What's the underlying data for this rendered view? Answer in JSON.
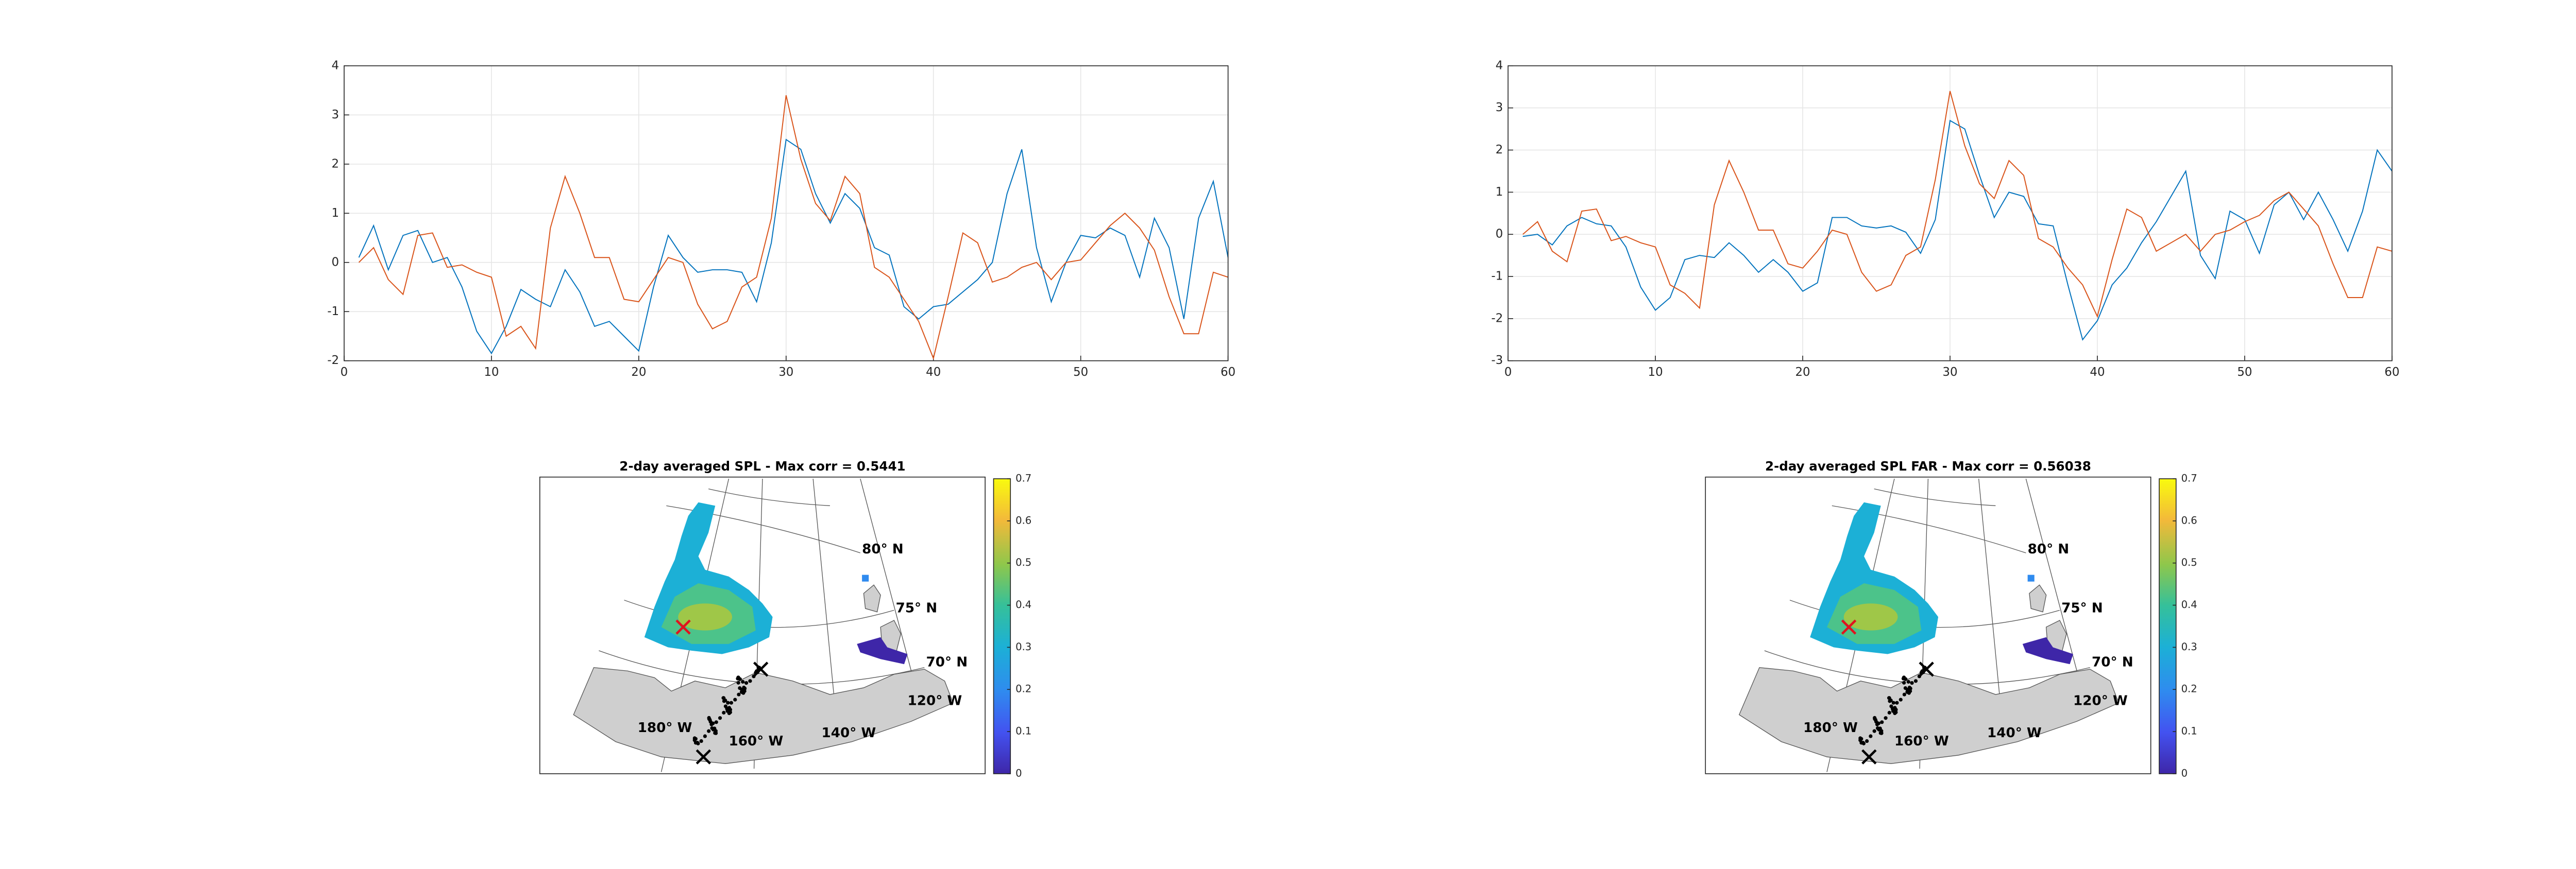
{
  "chart_data": [
    {
      "type": "line",
      "grid": true,
      "xlim": [
        0,
        60
      ],
      "ylim": [
        -2,
        4
      ],
      "xticks": [
        0,
        10,
        20,
        30,
        40,
        50,
        60
      ],
      "yticks": [
        -2,
        -1,
        0,
        1,
        2,
        3,
        4
      ],
      "x": [
        1,
        2,
        3,
        4,
        5,
        6,
        7,
        8,
        9,
        10,
        11,
        12,
        13,
        14,
        15,
        16,
        17,
        18,
        19,
        20,
        21,
        22,
        23,
        24,
        25,
        26,
        27,
        28,
        29,
        30,
        31,
        32,
        33,
        34,
        35,
        36,
        37,
        38,
        39,
        40,
        41,
        42,
        43,
        44,
        45,
        46,
        47,
        48,
        49,
        50,
        51,
        52,
        53,
        54,
        55,
        56,
        57,
        58,
        59,
        60
      ],
      "series": [
        {
          "color": "#0072bd",
          "values": [
            0.1,
            0.75,
            -0.15,
            0.55,
            0.65,
            0.0,
            0.1,
            -0.5,
            -1.4,
            -1.85,
            -1.3,
            -0.55,
            -0.75,
            -0.9,
            -0.15,
            -0.6,
            -1.3,
            -1.2,
            -1.5,
            -1.8,
            -0.5,
            0.55,
            0.1,
            -0.2,
            -0.15,
            -0.15,
            -0.2,
            -0.8,
            0.4,
            2.5,
            2.3,
            1.4,
            0.8,
            1.4,
            1.1,
            0.3,
            0.15,
            -0.9,
            -1.15,
            -0.9,
            -0.85,
            -0.6,
            -0.35,
            0.0,
            1.4,
            2.3,
            0.3,
            -0.8,
            0.0,
            0.55,
            0.5,
            0.7,
            0.55,
            -0.3,
            0.9,
            0.3,
            -1.15,
            0.9,
            1.65,
            0.1
          ]
        },
        {
          "color": "#d95319",
          "values": [
            0.0,
            0.3,
            -0.35,
            -0.65,
            0.55,
            0.6,
            -0.1,
            -0.05,
            -0.2,
            -0.3,
            -1.5,
            -1.3,
            -1.75,
            0.7,
            1.75,
            1.0,
            0.1,
            0.1,
            -0.75,
            -0.8,
            -0.35,
            0.1,
            0.0,
            -0.85,
            -1.35,
            -1.2,
            -0.5,
            -0.3,
            0.9,
            3.4,
            2.1,
            1.2,
            0.85,
            1.75,
            1.4,
            -0.1,
            -0.3,
            -0.75,
            -1.2,
            -1.95,
            -0.7,
            0.6,
            0.4,
            -0.4,
            -0.3,
            -0.1,
            0.0,
            -0.35,
            0.0,
            0.05,
            0.4,
            0.75,
            1.0,
            0.7,
            0.25,
            -0.7,
            -1.45,
            -1.45,
            -0.2,
            -0.3
          ]
        }
      ]
    },
    {
      "type": "line",
      "grid": true,
      "xlim": [
        0,
        60
      ],
      "ylim": [
        -3,
        4
      ],
      "xticks": [
        0,
        10,
        20,
        30,
        40,
        50,
        60
      ],
      "yticks": [
        -3,
        -2,
        -1,
        0,
        1,
        2,
        3,
        4
      ],
      "x": [
        1,
        2,
        3,
        4,
        5,
        6,
        7,
        8,
        9,
        10,
        11,
        12,
        13,
        14,
        15,
        16,
        17,
        18,
        19,
        20,
        21,
        22,
        23,
        24,
        25,
        26,
        27,
        28,
        29,
        30,
        31,
        32,
        33,
        34,
        35,
        36,
        37,
        38,
        39,
        40,
        41,
        42,
        43,
        44,
        45,
        46,
        47,
        48,
        49,
        50,
        51,
        52,
        53,
        54,
        55,
        56,
        57,
        58,
        59,
        60
      ],
      "series": [
        {
          "color": "#0072bd",
          "values": [
            -0.05,
            0.0,
            -0.25,
            0.2,
            0.4,
            0.25,
            0.2,
            -0.3,
            -1.25,
            -1.8,
            -1.5,
            -0.6,
            -0.5,
            -0.55,
            -0.2,
            -0.5,
            -0.9,
            -0.6,
            -0.9,
            -1.35,
            -1.15,
            0.4,
            0.4,
            0.2,
            0.15,
            0.2,
            0.05,
            -0.45,
            0.35,
            2.7,
            2.5,
            1.4,
            0.4,
            1.0,
            0.9,
            0.25,
            0.2,
            -1.2,
            -2.5,
            -2.05,
            -1.2,
            -0.8,
            -0.2,
            0.3,
            0.9,
            1.5,
            -0.5,
            -1.05,
            0.55,
            0.35,
            -0.45,
            0.7,
            1.0,
            0.35,
            1.0,
            0.35,
            -0.4,
            0.55,
            2.0,
            1.5
          ]
        },
        {
          "color": "#d95319",
          "values": [
            0.0,
            0.3,
            -0.4,
            -0.65,
            0.55,
            0.6,
            -0.15,
            -0.05,
            -0.2,
            -0.3,
            -1.2,
            -1.4,
            -1.75,
            0.7,
            1.75,
            1.0,
            0.1,
            0.1,
            -0.7,
            -0.8,
            -0.4,
            0.1,
            0.0,
            -0.9,
            -1.35,
            -1.2,
            -0.5,
            -0.3,
            1.3,
            3.4,
            2.1,
            1.2,
            0.85,
            1.75,
            1.4,
            -0.1,
            -0.3,
            -0.8,
            -1.2,
            -1.95,
            -0.6,
            0.6,
            0.4,
            -0.4,
            -0.2,
            0.0,
            -0.4,
            0.0,
            0.1,
            0.3,
            0.45,
            0.8,
            1.0,
            0.6,
            0.2,
            -0.7,
            -1.5,
            -1.5,
            -0.3,
            -0.4
          ]
        }
      ]
    },
    {
      "type": "map",
      "title": "2-day averaged SPL - Max corr = 0.5441",
      "clim": [
        0,
        0.7
      ],
      "cticks": [
        0,
        0.1,
        0.2,
        0.3,
        0.4,
        0.5,
        0.6,
        0.7
      ],
      "labels": [
        "80° N",
        "75° N",
        "70° N",
        "120° W",
        "140° W",
        "160° W",
        "180° W"
      ]
    },
    {
      "type": "map",
      "title": "2-day averaged SPL FAR - Max corr = 0.56038",
      "clim": [
        0,
        0.7
      ],
      "cticks": [
        0,
        0.1,
        0.2,
        0.3,
        0.4,
        0.5,
        0.6,
        0.7
      ],
      "labels": [
        "80° N",
        "75° N",
        "70° N",
        "120° W",
        "140° W",
        "160° W",
        "180° W"
      ]
    }
  ]
}
